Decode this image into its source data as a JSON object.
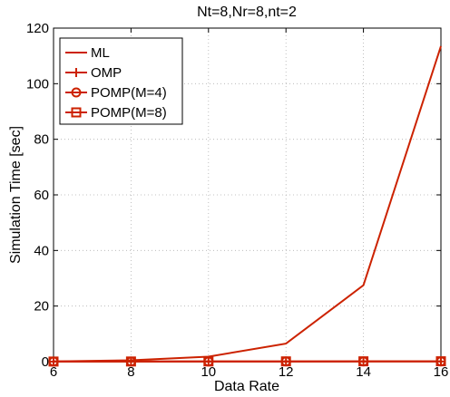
{
  "chart_data": {
    "type": "line",
    "title": "Nt=8,Nr=8,nt=2",
    "xlabel": "Data Rate",
    "ylabel": "Simulation Time [sec]",
    "xlim": [
      6,
      16
    ],
    "ylim": [
      0,
      120
    ],
    "xticks": [
      6,
      8,
      10,
      12,
      14,
      16
    ],
    "yticks": [
      0,
      20,
      40,
      60,
      80,
      100,
      120
    ],
    "grid": true,
    "legend_position": "top-left",
    "x": [
      6,
      8,
      10,
      12,
      14,
      16
    ],
    "series": [
      {
        "name": "ML",
        "marker": "none",
        "color": "#cc2200",
        "values": [
          0.1,
          0.5,
          1.8,
          6.5,
          27.5,
          113.5
        ]
      },
      {
        "name": "OMP",
        "marker": "plus",
        "color": "#cc2200",
        "values": [
          0.02,
          0.02,
          0.03,
          0.04,
          0.05,
          0.06
        ]
      },
      {
        "name": "POMP(M=4)",
        "marker": "circle",
        "color": "#cc2200",
        "values": [
          0.03,
          0.04,
          0.05,
          0.07,
          0.08,
          0.1
        ]
      },
      {
        "name": "POMP(M=8)",
        "marker": "square",
        "color": "#cc2200",
        "values": [
          0.04,
          0.06,
          0.08,
          0.1,
          0.12,
          0.14
        ]
      }
    ]
  }
}
